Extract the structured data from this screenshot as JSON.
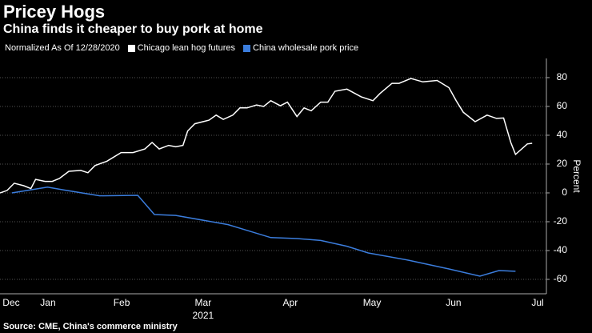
{
  "chart_data": {
    "type": "line",
    "title": "Pricey Hogs",
    "subtitle": "China finds it cheaper to buy pork at home",
    "note": "Normalized As Of 12/28/2020",
    "ylabel": "Percent",
    "xlabel": "2021",
    "source": "Source: CME, China's commerce ministry",
    "xlim": [
      0,
      230
    ],
    "xticks": [
      {
        "value": 4.7,
        "label": "Dec"
      },
      {
        "value": 20.2,
        "label": "Jan"
      },
      {
        "value": 51.2,
        "label": "Feb"
      },
      {
        "value": 85.5,
        "label": "Mar"
      },
      {
        "value": 122.2,
        "label": "Apr"
      },
      {
        "value": 156.6,
        "label": "May"
      },
      {
        "value": 190.9,
        "label": "Jun"
      },
      {
        "value": 226.3,
        "label": "Jul"
      }
    ],
    "ylim": [
      -70,
      93.3
    ],
    "yticks": [
      80,
      60,
      40,
      20,
      0,
      -20,
      -40,
      -60
    ],
    "grid": true,
    "series": [
      {
        "name": "Chicago lean hog futures",
        "color": "#ffffff",
        "x": [
          0,
          3,
          6,
          10,
          13,
          15,
          19,
          22,
          25,
          29,
          34,
          37,
          40,
          45,
          51,
          56,
          61,
          64,
          67,
          71,
          74,
          77,
          79,
          82,
          88,
          91,
          94,
          98,
          101,
          104,
          108,
          111,
          114,
          118,
          121,
          125,
          128,
          131,
          135,
          138,
          141,
          146,
          152,
          157,
          160,
          165,
          168,
          173,
          178,
          184,
          189,
          192,
          195,
          200,
          205,
          209,
          212,
          215,
          217,
          222,
          224
        ],
        "values": [
          0,
          1.7,
          6.7,
          5,
          3,
          9.4,
          8,
          8,
          10,
          15,
          15.6,
          14,
          19,
          22,
          28,
          28,
          30.5,
          35,
          30.5,
          33,
          32,
          33,
          43,
          48,
          50.5,
          54,
          51,
          54,
          59,
          59,
          61,
          60,
          64,
          60.5,
          63,
          53,
          59,
          57,
          63,
          63,
          70.5,
          72,
          66.7,
          64,
          69,
          76,
          76,
          79.4,
          77,
          78,
          73,
          64,
          56,
          49.4,
          54,
          51.7,
          52,
          35,
          26.7,
          34,
          34.4
        ]
      },
      {
        "name": "China wholesale pork price",
        "color": "#3b7ddd",
        "x": [
          5,
          20,
          27,
          42,
          58,
          65,
          74,
          96,
          104,
          114,
          125,
          135,
          146,
          155,
          172,
          189,
          202,
          210,
          217
        ],
        "values": [
          0,
          4,
          2,
          -2,
          -1.7,
          -15,
          -15.6,
          -22,
          -26,
          -31,
          -31.7,
          -33,
          -37,
          -41.7,
          -46.7,
          -52.8,
          -57.8,
          -53.9,
          -54.4
        ]
      }
    ]
  }
}
